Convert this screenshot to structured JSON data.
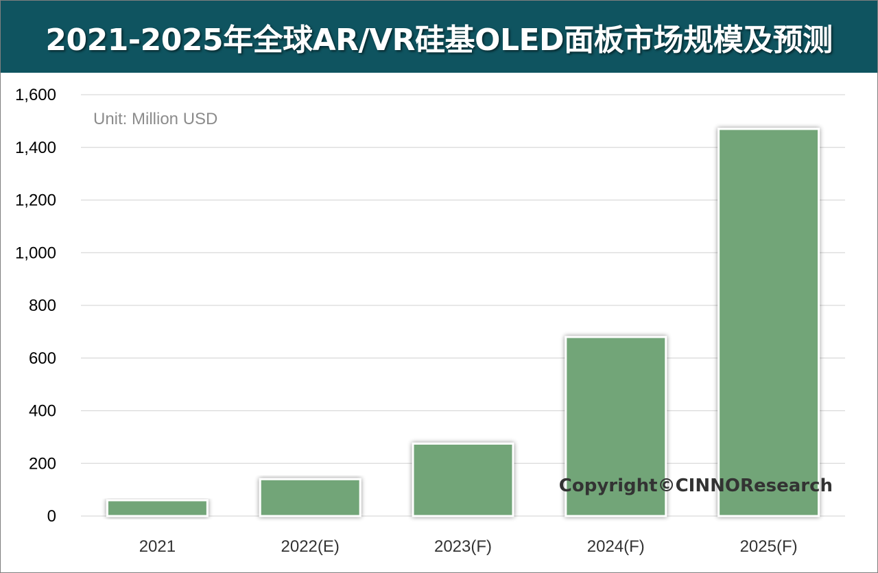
{
  "header": {
    "title": "2021-2025年全球AR/VR硅基OLED面板市场规模及预测"
  },
  "chart_data": {
    "type": "bar",
    "title": "2021-2025年全球AR/VR硅基OLED面板市场规模及预测",
    "unit_note": "Unit: Million USD",
    "categories": [
      "2021",
      "2022(E)",
      "2023(F)",
      "2024(F)",
      "2025(F)"
    ],
    "values": [
      60,
      140,
      275,
      680,
      1470
    ],
    "ylim": [
      0,
      1600
    ],
    "ytick_values": [
      0,
      200,
      400,
      600,
      800,
      1000,
      1200,
      1400,
      1600
    ],
    "ytick_labels": [
      "0",
      "200",
      "400",
      "600",
      "800",
      "1,000",
      "1,200",
      "1,400",
      "1,600"
    ],
    "xlabel": "",
    "ylabel": "",
    "grid": true,
    "annotation": "Copyright©CINNOResearch"
  },
  "colors": {
    "title_bg": "#0f5460",
    "bar_fill": "#72a578",
    "grid": "#d9d9d9"
  }
}
